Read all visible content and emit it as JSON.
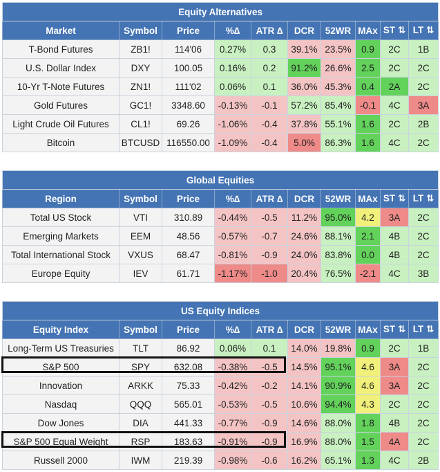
{
  "colors": {
    "header_bg": "#4474b4",
    "row_bg": "#f3f3f3",
    "light_green": "#c8f0c0",
    "green": "#62d25b",
    "light_red": "#f4c4c4",
    "red": "#ee8a88",
    "yellow": "#f0f07a",
    "highlight_border": "#111111"
  },
  "equity_alternatives": {
    "title": "Equity Alternatives",
    "headers": [
      "Market",
      "Symbol",
      "Price",
      "%∆",
      "ATR ∆",
      "DCR",
      "52WR",
      "MAx",
      "ST ⇅",
      "LT ⇅"
    ],
    "rows": [
      {
        "cells": [
          "T-Bond Futures",
          "ZB1!",
          "114'06",
          "0.27%",
          "0.3",
          "39.1%",
          "23.5%",
          "0.9",
          "2C",
          "1B"
        ],
        "colors": [
          "",
          "",
          "",
          "g",
          "g",
          "r",
          "r",
          "G",
          "g",
          "g"
        ]
      },
      {
        "cells": [
          "U.S. Dollar Index",
          "DXY",
          "100.05",
          "0.16%",
          "0.2",
          "91.2%",
          "26.6%",
          "2.5",
          "2C",
          "2C"
        ],
        "colors": [
          "",
          "",
          "",
          "g",
          "g",
          "G",
          "r",
          "G",
          "g",
          "g"
        ]
      },
      {
        "cells": [
          "10-Yr T-Note Futures",
          "ZN1!",
          "111'02",
          "0.06%",
          "0.1",
          "36.0%",
          "45.3%",
          "0.4",
          "2A",
          "2C"
        ],
        "colors": [
          "",
          "",
          "",
          "g",
          "g",
          "r",
          "r",
          "G",
          "G",
          "g"
        ]
      },
      {
        "cells": [
          "Gold Futures",
          "GC1!",
          "3348.60",
          "-0.13%",
          "-0.1",
          "57.2%",
          "85.4%",
          "-0.1",
          "4C",
          "3A"
        ],
        "colors": [
          "",
          "",
          "",
          "r",
          "r",
          "g",
          "g",
          "R",
          "g",
          "R"
        ]
      },
      {
        "cells": [
          "Light Crude Oil Futures",
          "CL1!",
          "69.26",
          "-1.06%",
          "-0.4",
          "37.8%",
          "55.1%",
          "1.6",
          "2C",
          "2B"
        ],
        "colors": [
          "",
          "",
          "",
          "r",
          "r",
          "r",
          "g",
          "G",
          "g",
          "g"
        ]
      },
      {
        "cells": [
          "Bitcoin",
          "BTCUSD",
          "116550.00",
          "-1.09%",
          "-0.4",
          "5.0%",
          "86.3%",
          "1.6",
          "4C",
          "2C"
        ],
        "colors": [
          "",
          "",
          "",
          "r",
          "r",
          "R",
          "g",
          "G",
          "g",
          "g"
        ]
      }
    ]
  },
  "global_equities": {
    "title": "Global Equities",
    "headers": [
      "Region",
      "Symbol",
      "Price",
      "%∆",
      "ATR ∆",
      "DCR",
      "52WR",
      "MAx",
      "ST ⇅",
      "LT ⇅"
    ],
    "rows": [
      {
        "cells": [
          "Total US Stock",
          "VTI",
          "310.89",
          "-0.44%",
          "-0.5",
          "11.2%",
          "95.0%",
          "4.2",
          "3A",
          "2C"
        ],
        "colors": [
          "",
          "",
          "",
          "r",
          "r",
          "r",
          "G",
          "y",
          "R",
          "g"
        ]
      },
      {
        "cells": [
          "Emerging Markets",
          "EEM",
          "48.56",
          "-0.57%",
          "-0.7",
          "24.6%",
          "88.1%",
          "2.1",
          "4B",
          "2C"
        ],
        "colors": [
          "",
          "",
          "",
          "r",
          "r",
          "r",
          "g",
          "G",
          "g",
          "g"
        ]
      },
      {
        "cells": [
          "Total International Stock",
          "VXUS",
          "68.47",
          "-0.81%",
          "-0.9",
          "24.0%",
          "83.8%",
          "0.0",
          "4B",
          "2C"
        ],
        "colors": [
          "",
          "",
          "",
          "r",
          "r",
          "r",
          "g",
          "G",
          "g",
          "g"
        ]
      },
      {
        "cells": [
          "Europe Equity",
          "IEV",
          "61.71",
          "-1.17%",
          "-1.0",
          "20.4%",
          "76.5%",
          "-2.1",
          "4C",
          "3B"
        ],
        "colors": [
          "",
          "",
          "",
          "R",
          "R",
          "r",
          "g",
          "R",
          "g",
          "g"
        ]
      }
    ]
  },
  "us_equity_indices": {
    "title": "US Equity Indices",
    "headers": [
      "Equity Index",
      "Symbol",
      "Price",
      "%∆",
      "ATR ∆",
      "DCR",
      "52WR",
      "MAx",
      "ST ⇅",
      "LT ⇅"
    ],
    "rows": [
      {
        "cells": [
          "Long-Term US Treasuries",
          "TLT",
          "86.92",
          "0.06%",
          "0.1",
          "14.0%",
          "19.8%",
          "0.9",
          "2C",
          "1B"
        ],
        "colors": [
          "",
          "",
          "",
          "g",
          "g",
          "r",
          "r",
          "G",
          "g",
          "g"
        ]
      },
      {
        "cells": [
          "S&P 500",
          "SPY",
          "632.08",
          "-0.38%",
          "-0.5",
          "14.5%",
          "95.1%",
          "4.6",
          "3A",
          "2C"
        ],
        "colors": [
          "",
          "",
          "",
          "r",
          "r",
          "r",
          "G",
          "y",
          "R",
          "g"
        ]
      },
      {
        "cells": [
          "Innovation",
          "ARKK",
          "75.33",
          "-0.42%",
          "-0.2",
          "14.1%",
          "90.9%",
          "4.6",
          "3A",
          "2C"
        ],
        "colors": [
          "",
          "",
          "",
          "r",
          "r",
          "r",
          "G",
          "y",
          "R",
          "g"
        ]
      },
      {
        "cells": [
          "Nasdaq",
          "QQQ",
          "565.01",
          "-0.53%",
          "-0.5",
          "10.6%",
          "94.4%",
          "4.3",
          "2C",
          "2C"
        ],
        "colors": [
          "",
          "",
          "",
          "r",
          "r",
          "r",
          "G",
          "y",
          "g",
          "g"
        ]
      },
      {
        "cells": [
          "Dow Jones",
          "DIA",
          "441.33",
          "-0.77%",
          "-0.9",
          "14.6%",
          "88.0%",
          "1.8",
          "4B",
          "2C"
        ],
        "colors": [
          "",
          "",
          "",
          "r",
          "r",
          "r",
          "g",
          "G",
          "g",
          "g"
        ]
      },
      {
        "cells": [
          "S&P 500 Equal Weight",
          "RSP",
          "183.63",
          "-0.91%",
          "-0.9",
          "16.9%",
          "88.0%",
          "1.5",
          "4A",
          "2C"
        ],
        "colors": [
          "",
          "",
          "",
          "r",
          "r",
          "r",
          "g",
          "G",
          "R",
          "g"
        ]
      },
      {
        "cells": [
          "Russell 2000",
          "IWM",
          "219.39",
          "-0.98%",
          "-0.6",
          "16.2%",
          "65.1%",
          "1.3",
          "4C",
          "2B"
        ],
        "colors": [
          "",
          "",
          "",
          "r",
          "r",
          "r",
          "g",
          "G",
          "g",
          "g"
        ]
      }
    ]
  }
}
